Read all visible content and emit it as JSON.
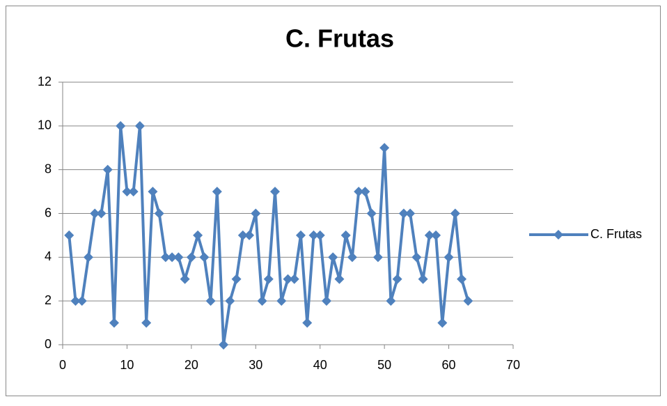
{
  "chart_data": {
    "type": "line",
    "title": "C. Frutas",
    "x": [
      1,
      2,
      3,
      4,
      5,
      6,
      7,
      8,
      9,
      10,
      11,
      12,
      13,
      14,
      15,
      16,
      17,
      18,
      19,
      20,
      21,
      22,
      23,
      24,
      25,
      26,
      27,
      28,
      29,
      30,
      31,
      32,
      33,
      34,
      35,
      36,
      37,
      38,
      39,
      40,
      41,
      42,
      43,
      44,
      45,
      46,
      47,
      48,
      49,
      50,
      51,
      52,
      53,
      54,
      55,
      56,
      57,
      58,
      59,
      60,
      61,
      62,
      63
    ],
    "series": [
      {
        "name": "C. Frutas",
        "color": "#4f81bd",
        "values": [
          5,
          2,
          2,
          4,
          6,
          6,
          8,
          1,
          10,
          7,
          7,
          10,
          1,
          7,
          6,
          4,
          4,
          4,
          3,
          4,
          5,
          4,
          2,
          7,
          0,
          2,
          3,
          5,
          5,
          6,
          2,
          3,
          7,
          2,
          3,
          3,
          5,
          1,
          5,
          5,
          2,
          4,
          3,
          5,
          4,
          7,
          7,
          6,
          4,
          9,
          2,
          3,
          6,
          6,
          4,
          3,
          5,
          5,
          1,
          4,
          6,
          3,
          2
        ]
      }
    ],
    "xlim": [
      0,
      70
    ],
    "xticks": [
      0,
      10,
      20,
      30,
      40,
      50,
      60,
      70
    ],
    "ylim": [
      0,
      12
    ],
    "yticks": [
      0,
      2,
      4,
      6,
      8,
      10,
      12
    ],
    "grid": true,
    "legend": "right"
  }
}
